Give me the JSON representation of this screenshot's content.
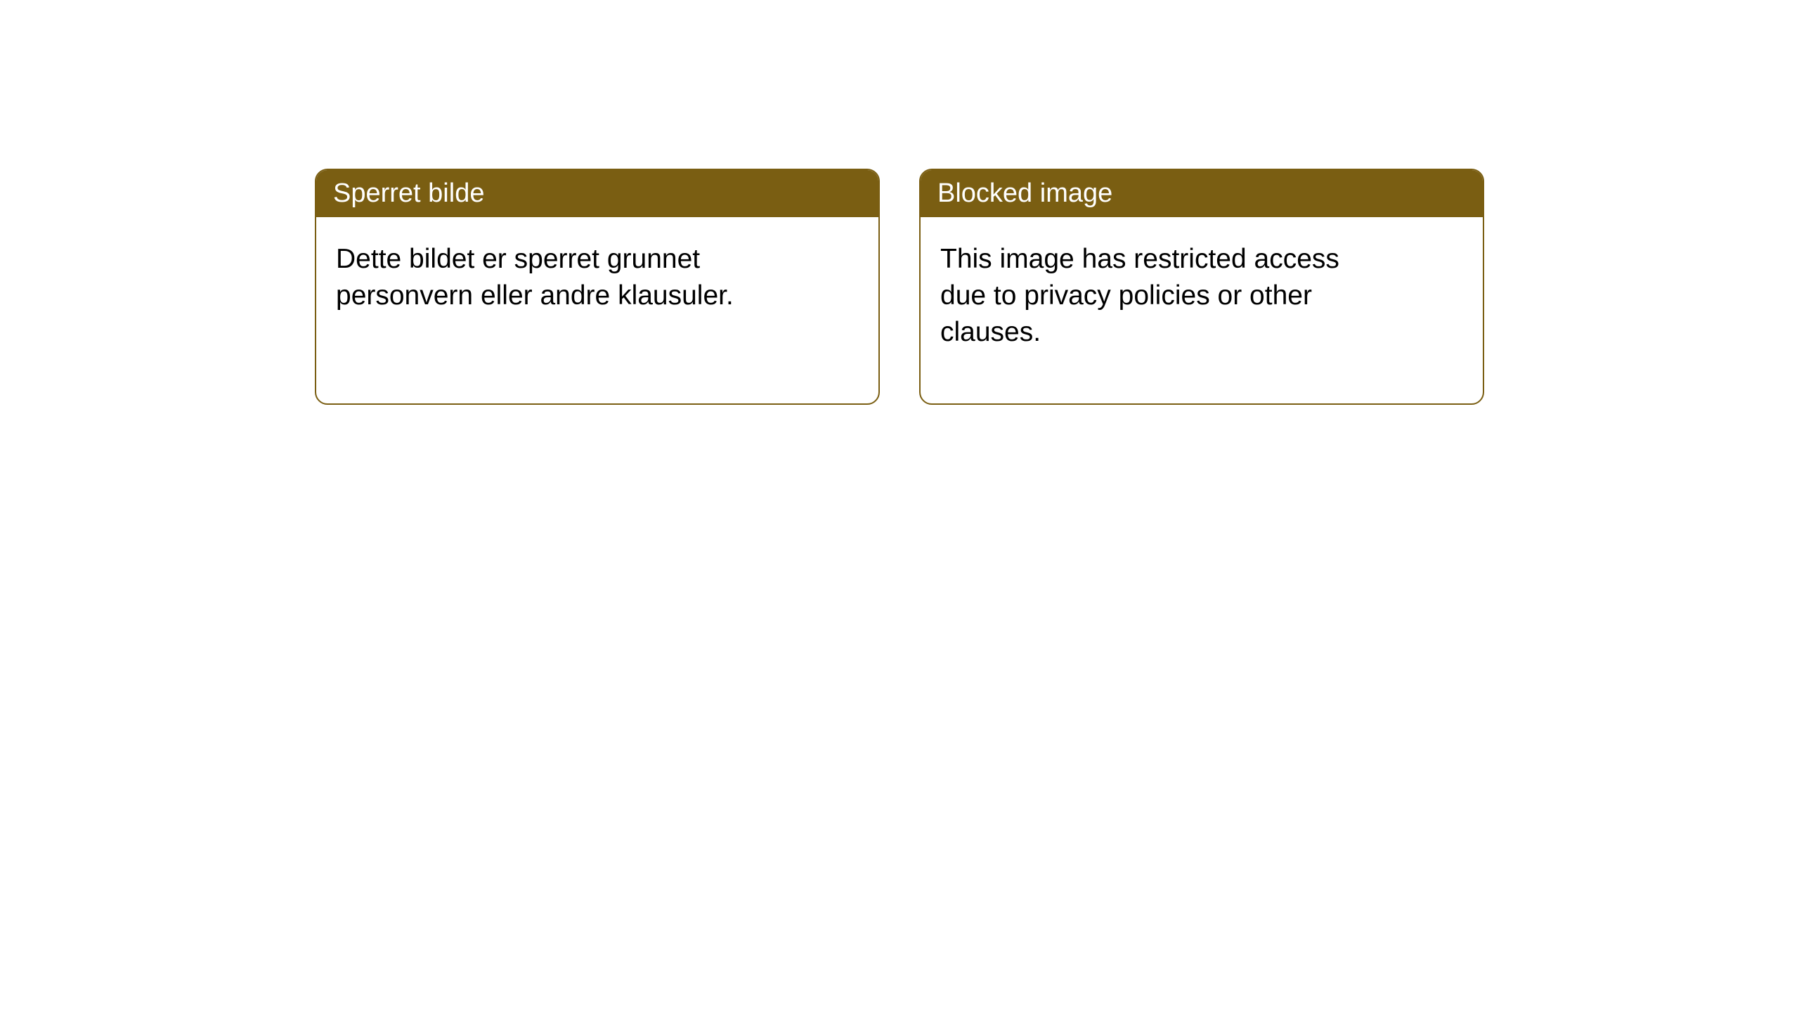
{
  "notices": [
    {
      "title": "Sperret bilde",
      "body": "Dette bildet er sperret grunnet personvern eller andre klausuler."
    },
    {
      "title": "Blocked image",
      "body": "This image has restricted access due to privacy policies or other clauses."
    }
  ],
  "styling": {
    "header_bg_color": "#7a5e12",
    "header_text_color": "#ffffff",
    "border_color": "#7a5e12",
    "body_text_color": "#000000",
    "card_bg_color": "#ffffff",
    "page_bg_color": "#ffffff",
    "border_radius": 18,
    "header_fontsize": 38,
    "body_fontsize": 39
  }
}
